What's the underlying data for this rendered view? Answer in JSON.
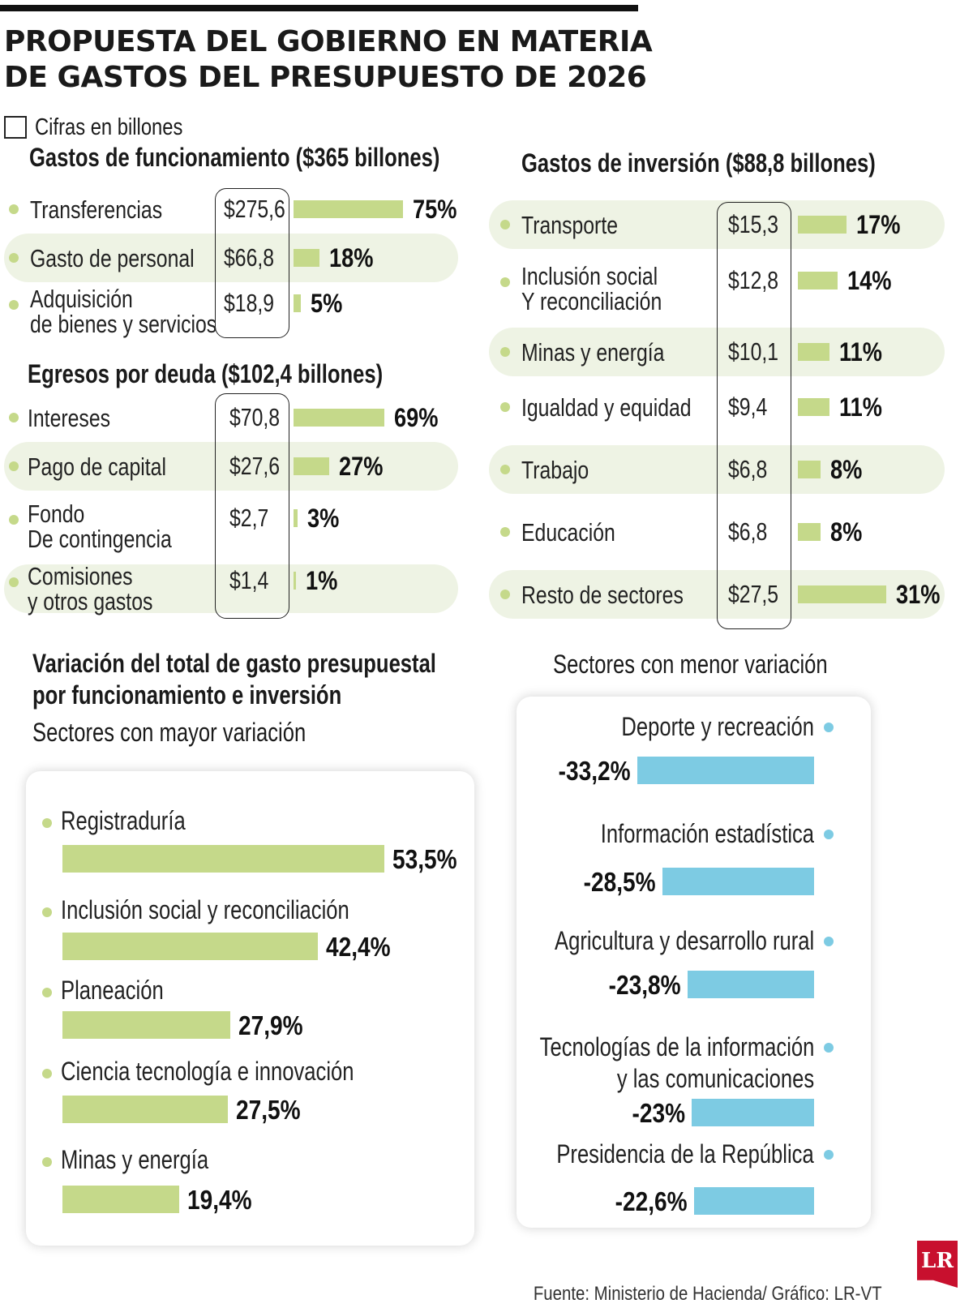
{
  "title_line1": "PROPUESTA DEL GOBIERNO EN MATERIA",
  "title_line2": "DE GASTOS DEL PRESUPUESTO DE 2026",
  "units_note": "Cifras en billones",
  "colors": {
    "green": "#c5d98a",
    "blue": "#7dcbe3",
    "row_bg": "#eef3e4",
    "logo_red": "#c8102e"
  },
  "chart_data": [
    {
      "type": "bar",
      "title": "Gastos de funcionamiento ($365 billones)",
      "categories": [
        [
          "Transferencias"
        ],
        [
          "Gasto de personal"
        ],
        [
          "Adquisición",
          "de bienes y servicios"
        ]
      ],
      "values": [
        "$275,6",
        "$66,8",
        "$18,9"
      ],
      "percentages": [
        "75%",
        "18%",
        "5%"
      ],
      "pct_values": [
        75,
        18,
        5
      ]
    },
    {
      "type": "bar",
      "title": "Egresos por deuda ($102,4 billones)",
      "categories": [
        [
          "Intereses"
        ],
        [
          "Pago de capital"
        ],
        [
          "Fondo",
          "De contingencia"
        ],
        [
          "Comisiones",
          "y otros gastos"
        ]
      ],
      "values": [
        "$70,8",
        "$27,6",
        "$2,7",
        "$1,4"
      ],
      "percentages": [
        "69%",
        "27%",
        "3%",
        "1%"
      ],
      "pct_values": [
        69,
        27,
        3,
        1
      ]
    },
    {
      "type": "bar",
      "title": "Gastos de inversión ($88,8 billones)",
      "categories": [
        [
          "Transporte"
        ],
        [
          "Inclusión social",
          "Y reconciliación"
        ],
        [
          "Minas y energía"
        ],
        [
          "Igualdad y equidad"
        ],
        [
          "Trabajo"
        ],
        [
          "Educación"
        ],
        [
          "Resto de sectores"
        ]
      ],
      "values": [
        "$15,3",
        "$12,8",
        "$10,1",
        "$9,4",
        "$6,8",
        "$6,8",
        "$27,5"
      ],
      "percentages": [
        "17%",
        "14%",
        "11%",
        "11%",
        "8%",
        "8%",
        "31%"
      ],
      "pct_values": [
        17,
        14,
        11,
        11,
        8,
        8,
        31
      ]
    },
    {
      "type": "bar",
      "title_line1": "Variación del total de gasto presupuestal",
      "title_line2": "por funcionamiento e inversión",
      "subtitle": "Sectores con mayor variación",
      "categories": [
        [
          "Registraduría"
        ],
        [
          "Inclusión social y reconciliación"
        ],
        [
          "Planeación"
        ],
        [
          "Ciencia tecnología e innovación"
        ],
        [
          "Minas y energía"
        ]
      ],
      "labels": [
        "53,5%",
        "42,4%",
        "27,9%",
        "27,5%",
        "19,4%"
      ],
      "values": [
        53.5,
        42.4,
        27.9,
        27.5,
        19.4
      ]
    },
    {
      "type": "bar",
      "subtitle": "Sectores con menor variación",
      "categories": [
        [
          "Deporte y recreación"
        ],
        [
          "Información estadística"
        ],
        [
          "Agricultura y desarrollo rural"
        ],
        [
          "Tecnologías de la información",
          "y las comunicaciones"
        ],
        [
          "Presidencia de la República"
        ]
      ],
      "labels": [
        "-33,2%",
        "-28,5%",
        "-23,8%",
        "-23%",
        "-22,6%"
      ],
      "values": [
        -33.2,
        -28.5,
        -23.8,
        -23,
        -22.6
      ]
    }
  ],
  "source": "Fuente: Ministerio de Hacienda/ Gráfico: LR-VT",
  "logo_text": "LR"
}
